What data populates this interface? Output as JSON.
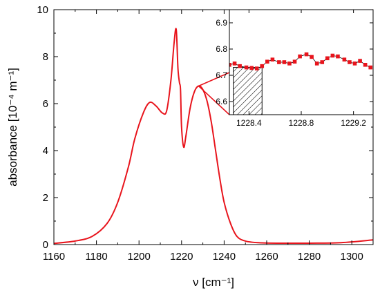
{
  "chart_data": [
    {
      "type": "line",
      "title": "",
      "xlabel": "ν [cm⁻¹]",
      "ylabel": "absorbance [10⁻⁴ m⁻¹]",
      "xlim": [
        1160,
        1310
      ],
      "ylim": [
        0,
        10
      ],
      "xticks": [
        "1160",
        "1180",
        "1200",
        "1220",
        "1240",
        "1260",
        "1280",
        "1300"
      ],
      "yticks": [
        "0",
        "2",
        "4",
        "6",
        "8",
        "10"
      ],
      "grid": false,
      "series": [
        {
          "color": "#e8141c",
          "x": [
            1160,
            1170,
            1178,
            1185,
            1190,
            1195,
            1198,
            1202,
            1205,
            1208,
            1211,
            1213,
            1215,
            1216.5,
            1217.5,
            1218.3,
            1219,
            1219.5,
            1220,
            1221,
            1222,
            1224,
            1226,
            1228,
            1230,
            1232,
            1234,
            1236,
            1238,
            1240,
            1243,
            1246,
            1250,
            1256,
            1265,
            1280,
            1295,
            1310
          ],
          "y": [
            0.05,
            0.15,
            0.35,
            0.9,
            1.8,
            3.3,
            4.5,
            5.6,
            6.05,
            5.9,
            5.6,
            5.7,
            7.0,
            8.6,
            9.15,
            7.5,
            6.9,
            6.6,
            5.0,
            4.15,
            4.6,
            5.8,
            6.5,
            6.75,
            6.6,
            6.1,
            5.2,
            4.0,
            2.8,
            1.8,
            0.9,
            0.35,
            0.15,
            0.08,
            0.06,
            0.06,
            0.08,
            0.2
          ]
        }
      ]
    },
    {
      "type": "line",
      "title": "",
      "xlabel": "",
      "ylabel": "",
      "xlim": [
        1228.25,
        1229.35
      ],
      "ylim": [
        6.55,
        6.95
      ],
      "xticks": [
        "1228.4",
        "1228.8",
        "1229.2"
      ],
      "yticks": [
        "6.6",
        "6.7",
        "6.8",
        "6.9"
      ],
      "shaded_region": [
        1228.28,
        1228.5
      ],
      "series": [
        {
          "color": "#e8141c",
          "x": [
            1228.25,
            1228.29,
            1228.33,
            1228.38,
            1228.42,
            1228.46,
            1228.5,
            1228.54,
            1228.58,
            1228.63,
            1228.67,
            1228.71,
            1228.75,
            1228.79,
            1228.84,
            1228.88,
            1228.92,
            1228.96,
            1229.0,
            1229.04,
            1229.08,
            1229.13,
            1229.17,
            1229.21,
            1229.25,
            1229.29,
            1229.33
          ],
          "y": [
            6.74,
            6.745,
            6.735,
            6.73,
            6.728,
            6.726,
            6.735,
            6.752,
            6.76,
            6.75,
            6.75,
            6.745,
            6.752,
            6.772,
            6.78,
            6.77,
            6.745,
            6.75,
            6.765,
            6.775,
            6.772,
            6.76,
            6.75,
            6.745,
            6.755,
            6.74,
            6.73
          ]
        }
      ]
    }
  ]
}
